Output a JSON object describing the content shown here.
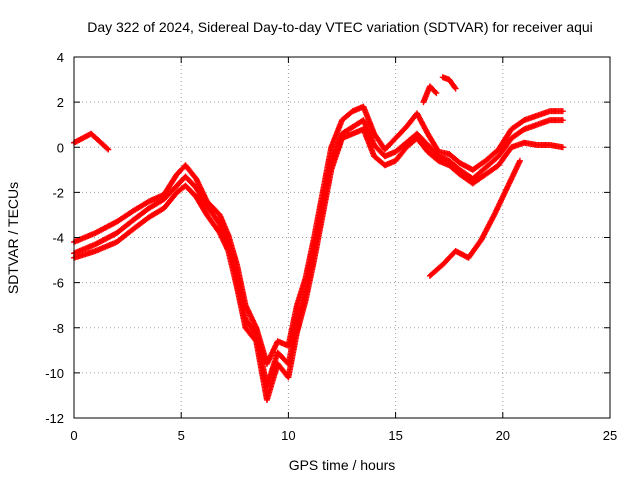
{
  "chart_data": {
    "type": "scatter",
    "title": "Day 322 of 2024, Sidereal Day-to-day VTEC variation (SDTVAR) for receiver aqui",
    "xlabel": "GPS time / hours",
    "ylabel": "SDTVAR / TECUs",
    "xlim": [
      0,
      25
    ],
    "ylim": [
      -12,
      4
    ],
    "xticks": [
      "0",
      "5",
      "10",
      "15",
      "20",
      "25"
    ],
    "yticks": [
      "4",
      "2",
      "0",
      "-2",
      "-4",
      "-6",
      "-8",
      "-10",
      "-12"
    ],
    "grid": true,
    "marker": "+",
    "color": "#ff0000",
    "series": [
      {
        "name": "track-1",
        "x": [
          0.0,
          0.8,
          1.6
        ],
        "y": [
          0.2,
          0.6,
          -0.1
        ]
      },
      {
        "name": "track-2",
        "x": [
          0.0,
          1.0,
          2.0,
          2.8,
          3.5,
          4.2,
          4.8,
          5.2,
          5.7,
          6.2,
          6.8,
          7.2,
          7.6,
          8.0,
          8.5,
          9.0,
          9.5,
          10.0,
          10.4,
          10.8,
          11.2,
          11.6,
          12.0,
          12.5,
          13.0,
          13.5,
          14.0,
          14.5,
          15.0,
          15.5,
          16.0,
          16.5,
          17.0,
          17.5,
          18.0,
          18.6,
          19.2,
          19.8,
          20.4,
          21.0,
          21.6,
          22.2,
          22.8
        ],
        "y": [
          -4.7,
          -4.3,
          -3.8,
          -3.2,
          -2.7,
          -2.3,
          -1.7,
          -1.3,
          -1.8,
          -2.6,
          -3.4,
          -4.2,
          -5.8,
          -7.6,
          -8.3,
          -10.6,
          -9.1,
          -9.6,
          -7.8,
          -6.4,
          -4.6,
          -2.6,
          -0.6,
          0.6,
          0.9,
          1.2,
          0.1,
          -0.4,
          -0.2,
          0.2,
          0.6,
          0.1,
          -0.4,
          -0.6,
          -1.0,
          -1.4,
          -0.9,
          -0.4,
          0.4,
          0.8,
          1.0,
          1.2,
          1.2
        ]
      },
      {
        "name": "track-3",
        "x": [
          0.0,
          1.0,
          2.0,
          2.8,
          3.5,
          4.2,
          4.8,
          5.2,
          5.7,
          6.2,
          6.8,
          7.2,
          7.6,
          8.0,
          8.5,
          9.0,
          9.5,
          10.0,
          10.4,
          10.8,
          11.2,
          11.6,
          12.0,
          12.5,
          13.0,
          13.5,
          14.0,
          14.5,
          15.0,
          15.5,
          16.0,
          16.5,
          17.0,
          17.5,
          18.0,
          18.6,
          19.2,
          19.8,
          20.4,
          21.0,
          21.6,
          22.2,
          22.8
        ],
        "y": [
          -4.2,
          -3.8,
          -3.3,
          -2.8,
          -2.4,
          -2.1,
          -1.2,
          -0.8,
          -1.4,
          -2.4,
          -3.0,
          -3.9,
          -5.2,
          -7.0,
          -8.0,
          -9.6,
          -8.6,
          -8.8,
          -7.0,
          -5.8,
          -4.0,
          -2.0,
          0.0,
          1.2,
          1.6,
          1.8,
          0.6,
          -0.1,
          0.4,
          0.9,
          1.5,
          0.6,
          -0.2,
          -0.3,
          -0.7,
          -1.0,
          -0.6,
          -0.1,
          0.8,
          1.2,
          1.4,
          1.6,
          1.6
        ]
      },
      {
        "name": "track-4",
        "x": [
          0.0,
          1.0,
          2.0,
          2.8,
          3.5,
          4.2,
          4.8,
          5.2,
          5.7,
          6.2,
          6.8,
          7.2,
          7.6,
          8.0,
          8.5,
          9.0,
          9.5,
          10.0,
          10.4,
          10.8,
          11.2,
          11.6,
          12.0,
          12.5,
          13.0,
          13.5,
          14.0,
          14.5,
          15.0,
          15.5,
          16.0,
          16.5,
          17.0,
          17.5,
          18.0,
          18.6,
          19.2,
          19.8,
          20.4,
          21.0,
          21.6,
          22.2,
          22.8
        ],
        "y": [
          -4.9,
          -4.6,
          -4.2,
          -3.6,
          -3.1,
          -2.7,
          -2.0,
          -1.7,
          -2.2,
          -3.0,
          -3.8,
          -4.6,
          -6.2,
          -8.0,
          -8.6,
          -11.2,
          -9.6,
          -10.2,
          -8.2,
          -6.8,
          -5.0,
          -3.0,
          -1.0,
          0.4,
          0.6,
          0.8,
          -0.4,
          -0.8,
          -0.6,
          0.0,
          0.4,
          -0.2,
          -0.6,
          -0.8,
          -1.2,
          -1.6,
          -1.2,
          -0.8,
          0.0,
          0.2,
          0.1,
          0.1,
          0.0
        ]
      },
      {
        "name": "track-5",
        "x": [
          16.3,
          16.6,
          16.9
        ],
        "y": [
          2.0,
          2.7,
          2.4
        ]
      },
      {
        "name": "track-6",
        "x": [
          17.2,
          17.5,
          17.8
        ],
        "y": [
          3.1,
          3.0,
          2.6
        ]
      },
      {
        "name": "track-7",
        "x": [
          16.6,
          17.2,
          17.8,
          18.4,
          19.0,
          19.6,
          20.2,
          20.8
        ],
        "y": [
          -5.7,
          -5.2,
          -4.6,
          -4.9,
          -4.1,
          -3.0,
          -1.8,
          -0.6
        ]
      }
    ]
  }
}
